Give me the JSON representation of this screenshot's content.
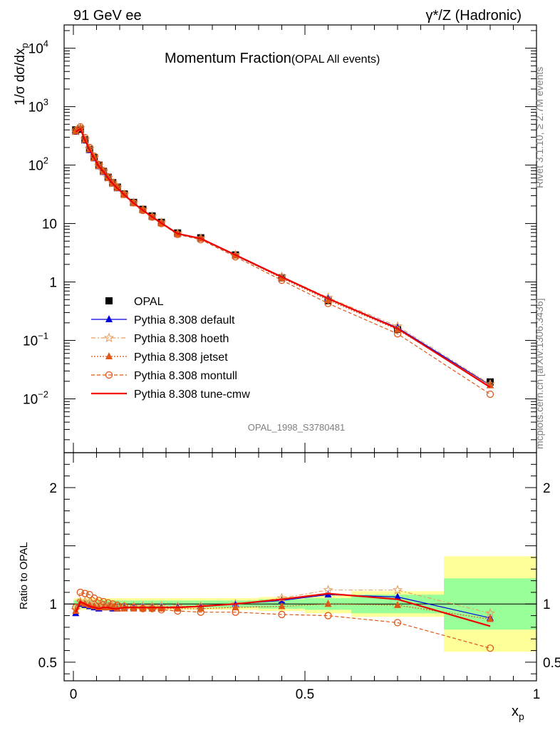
{
  "header": {
    "left": "91 GeV ee",
    "right": "γ*/Z (Hadronic)"
  },
  "side_labels": {
    "rivet": "Rivet 3.1.10, ≥ 2.7M events",
    "mcplots": "mcplots.cern.ch [arXiv:1306.3436]"
  },
  "watermark": "OPAL_1998_S3780481",
  "chart_data": [
    {
      "type": "line",
      "title": "Momentum Fraction",
      "subtitle": "(OPAL All events)",
      "ylabel": "1/σ dσ/dx_p",
      "yscale": "log",
      "ylim": [
        0.0012,
        25000
      ],
      "xlim": [
        -0.02,
        1.0
      ],
      "y_ticks": [
        {
          "v": 0.01,
          "base": "10",
          "exp": "−2"
        },
        {
          "v": 0.1,
          "base": "10",
          "exp": "−1"
        },
        {
          "v": 1,
          "base": "1",
          "exp": ""
        },
        {
          "v": 10,
          "base": "10",
          "exp": ""
        },
        {
          "v": 100,
          "base": "10",
          "exp": "2"
        },
        {
          "v": 1000,
          "base": "10",
          "exp": "3"
        },
        {
          "v": 10000,
          "base": "10",
          "exp": "4"
        }
      ],
      "legend_position": "bottom-left",
      "x": [
        0.005,
        0.015,
        0.025,
        0.035,
        0.045,
        0.055,
        0.065,
        0.075,
        0.085,
        0.095,
        0.11,
        0.13,
        0.15,
        0.17,
        0.19,
        0.225,
        0.275,
        0.35,
        0.45,
        0.55,
        0.7,
        0.9
      ],
      "series": [
        {
          "name": "OPAL",
          "marker": "square",
          "color": "#000000",
          "values": [
            400,
            410,
            270,
            185,
            135,
            100,
            78,
            62,
            50,
            42,
            32,
            23,
            17.5,
            13.5,
            10.5,
            6.9,
            5.7,
            2.9,
            1.18,
            0.48,
            0.155,
            0.0195
          ]
        },
        {
          "name": "Pythia 8.308 default",
          "marker": "triangle",
          "color": "#0000dd",
          "dash": "",
          "values": [
            370,
            420,
            265,
            180,
            130,
            95,
            76,
            60,
            48,
            40,
            31,
            22.5,
            17,
            13,
            10.2,
            6.7,
            5.5,
            2.85,
            1.2,
            0.52,
            0.165,
            0.0172
          ]
        },
        {
          "name": "Pythia 8.308 hoeth",
          "marker": "star",
          "color": "#e8a060",
          "dash": "6 3 2 3",
          "values": [
            380,
            430,
            275,
            190,
            135,
            98,
            78,
            61,
            49,
            41,
            31.5,
            22.8,
            17.2,
            13.2,
            10.4,
            6.75,
            5.6,
            2.9,
            1.24,
            0.54,
            0.175,
            0.0178
          ]
        },
        {
          "name": "Pythia 8.308 jetset",
          "marker": "triangle",
          "color": "#e05818",
          "dash": "2 2",
          "values": [
            375,
            425,
            270,
            185,
            132,
            96,
            77,
            60,
            48.5,
            40.5,
            31,
            22.4,
            17,
            13,
            10.1,
            6.6,
            5.5,
            2.83,
            1.16,
            0.49,
            0.153,
            0.017
          ]
        },
        {
          "name": "Pythia 8.308 montull",
          "marker": "circle",
          "color": "#e05818",
          "dash": "5 3",
          "values": [
            390,
            450,
            295,
            200,
            142,
            102,
            80,
            63,
            50,
            42,
            31.5,
            22.6,
            16.8,
            12.9,
            10.0,
            6.5,
            5.3,
            2.7,
            1.07,
            0.43,
            0.13,
            0.012
          ]
        },
        {
          "name": "Pythia 8.308 tune-cmw",
          "marker": "none",
          "color": "#ee0000",
          "dash": "",
          "values": [
            372,
            418,
            268,
            182,
            131,
            95.5,
            76.5,
            60,
            48.2,
            40.2,
            31,
            22.4,
            16.9,
            13,
            10.2,
            6.7,
            5.55,
            2.9,
            1.22,
            0.52,
            0.16,
            0.0158
          ]
        }
      ]
    },
    {
      "type": "line",
      "ylabel": "Ratio to OPAL",
      "xlabel": "x_p",
      "ylim": [
        0.34,
        2.3
      ],
      "xlim": [
        -0.02,
        1.0
      ],
      "y_ticks": [
        0.5,
        1,
        2
      ],
      "x_ticks": [
        0,
        0.5,
        1
      ],
      "x_tick_labels": [
        "0",
        "0.5",
        "1"
      ],
      "band_bins": [
        {
          "lo": 0.0,
          "hi": 0.2,
          "inner": 0.03,
          "outer": 0.05
        },
        {
          "lo": 0.2,
          "hi": 0.4,
          "inner": 0.03,
          "outer": 0.05
        },
        {
          "lo": 0.4,
          "hi": 0.5,
          "inner": 0.04,
          "outer": 0.06
        },
        {
          "lo": 0.5,
          "hi": 0.6,
          "inner": 0.05,
          "outer": 0.08
        },
        {
          "lo": 0.6,
          "hi": 0.8,
          "inner": 0.08,
          "outer": 0.11
        },
        {
          "lo": 0.8,
          "hi": 1.0,
          "inner": 0.22,
          "outer": 0.41
        }
      ],
      "x": [
        0.005,
        0.015,
        0.025,
        0.035,
        0.045,
        0.055,
        0.065,
        0.075,
        0.085,
        0.095,
        0.11,
        0.13,
        0.15,
        0.17,
        0.19,
        0.225,
        0.275,
        0.35,
        0.45,
        0.55,
        0.7,
        0.9
      ],
      "series": [
        {
          "name": "Pythia 8.308 default",
          "marker": "triangle",
          "color": "#0000dd",
          "dash": "",
          "values": [
            0.92,
            1.0,
            0.99,
            0.98,
            0.97,
            0.96,
            0.97,
            0.97,
            0.96,
            0.96,
            0.97,
            0.97,
            0.97,
            0.97,
            0.97,
            0.97,
            0.98,
            1.0,
            1.03,
            1.08,
            1.06,
            0.88
          ]
        },
        {
          "name": "Pythia 8.308 hoeth",
          "marker": "star",
          "color": "#e8a060",
          "dash": "6 3 2 3",
          "values": [
            0.95,
            1.02,
            1.02,
            1.01,
            1.0,
            0.99,
            0.99,
            0.98,
            0.98,
            0.98,
            0.98,
            0.98,
            0.98,
            0.98,
            0.98,
            0.98,
            0.98,
            1.0,
            1.05,
            1.12,
            1.12,
            0.92
          ]
        },
        {
          "name": "Pythia 8.308 jetset",
          "marker": "triangle",
          "color": "#e05818",
          "dash": "2 2",
          "values": [
            0.94,
            1.01,
            1.0,
            0.99,
            0.98,
            0.97,
            0.97,
            0.97,
            0.97,
            0.96,
            0.96,
            0.96,
            0.96,
            0.96,
            0.96,
            0.96,
            0.96,
            0.97,
            0.98,
            1.0,
            0.99,
            0.87
          ]
        },
        {
          "name": "Pythia 8.308 montull",
          "marker": "circle",
          "color": "#e05818",
          "dash": "5 3",
          "values": [
            0.97,
            1.1,
            1.09,
            1.08,
            1.05,
            1.03,
            1.02,
            1.01,
            1.0,
            0.99,
            0.98,
            0.97,
            0.96,
            0.96,
            0.95,
            0.94,
            0.93,
            0.93,
            0.91,
            0.9,
            0.84,
            0.62
          ]
        },
        {
          "name": "Pythia 8.308 tune-cmw",
          "marker": "none",
          "color": "#ee0000",
          "dash": "",
          "values": [
            0.93,
            1.02,
            1.0,
            0.98,
            0.97,
            0.96,
            0.97,
            0.97,
            0.96,
            0.96,
            0.97,
            0.97,
            0.97,
            0.97,
            0.97,
            0.97,
            0.98,
            1.0,
            1.04,
            1.09,
            1.04,
            0.81
          ]
        }
      ]
    }
  ]
}
